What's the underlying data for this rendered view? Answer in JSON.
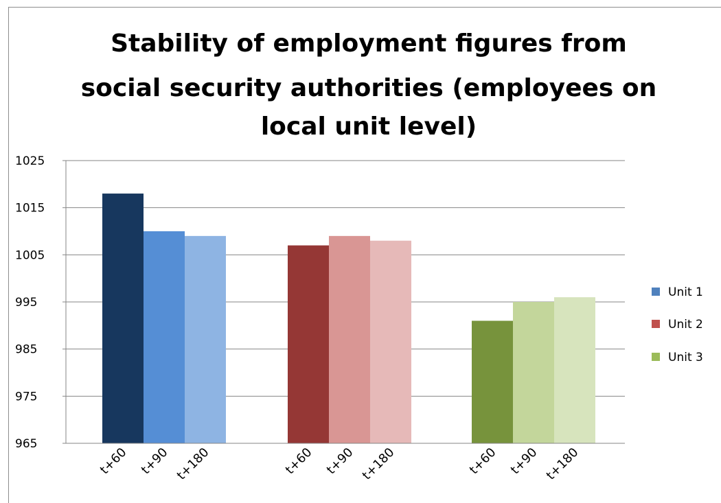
{
  "chart_data": {
    "type": "bar",
    "title": "Stability of employment figures from social security authorities (employees on local unit level)",
    "title_lines": [
      "Stability of employment figures from",
      "social security authorities (employees on",
      "local unit level)"
    ],
    "ylim": [
      965,
      1025
    ],
    "yticks": [
      965,
      975,
      985,
      995,
      1005,
      1015,
      1025
    ],
    "grid": true,
    "legend_position": "right",
    "legend": [
      {
        "name": "Unit 1",
        "color": "#4F81BD"
      },
      {
        "name": "Unit 2",
        "color": "#C0504D"
      },
      {
        "name": "Unit 3",
        "color": "#9BBB59"
      }
    ],
    "groups": [
      {
        "name": "Unit 1",
        "bars": [
          {
            "category": "t+60",
            "value": 1018,
            "color": "#17375E"
          },
          {
            "category": "t+90",
            "value": 1010,
            "color": "#558ED5"
          },
          {
            "category": "t+180",
            "value": 1009,
            "color": "#8EB4E3"
          }
        ]
      },
      {
        "name": "Unit 2",
        "bars": [
          {
            "category": "t+60",
            "value": 1007,
            "color": "#953735"
          },
          {
            "category": "t+90",
            "value": 1009,
            "color": "#D99694"
          },
          {
            "category": "t+180",
            "value": 1008,
            "color": "#E6B9B8"
          }
        ]
      },
      {
        "name": "Unit 3",
        "bars": [
          {
            "category": "t+60",
            "value": 991,
            "color": "#77933C"
          },
          {
            "category": "t+90",
            "value": 995,
            "color": "#C3D69B"
          },
          {
            "category": "t+180",
            "value": 996,
            "color": "#D7E4BD"
          }
        ]
      }
    ]
  }
}
